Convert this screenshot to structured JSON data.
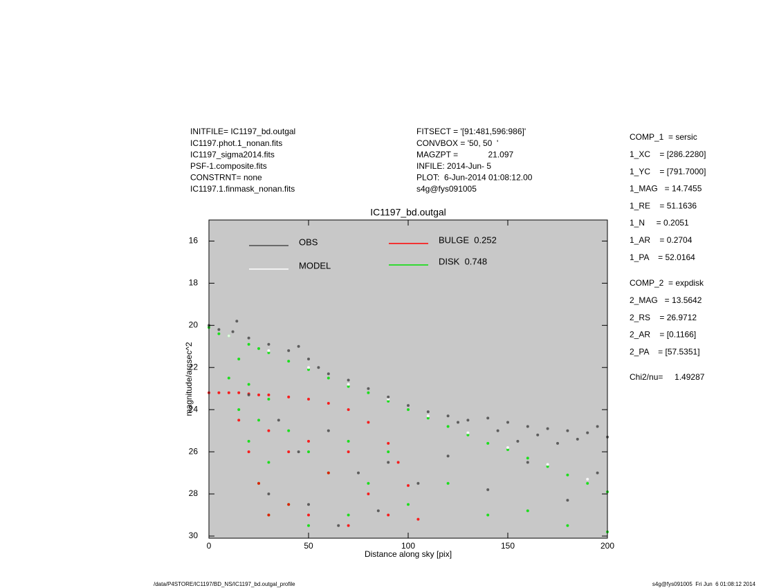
{
  "chart_data": {
    "type": "scatter",
    "title": "IC1197_bd.outgal",
    "x_label": "Distance along sky [pix]",
    "y_label": "magnitude/arcsec^2",
    "header_left": [
      "INITFILE= IC1197_bd.outgal",
      "IC1197.phot.1_nonan.fits",
      "IC1197_sigma2014.fits",
      "PSF-1.composite.fits",
      "CONSTRNT= none",
      "IC1197.1.finmask_nonan.fits"
    ],
    "header_middle": [
      "FITSECT = '[91:481,596:986]'",
      "CONVBOX = '50, 50  '",
      "MAGZPT =             21.097",
      "INFILE: 2014-Jun- 5",
      "PLOT:  6-Jun-2014 01:08:12.00",
      "s4g@fys091005"
    ],
    "parameters": [
      [
        "COMP_1  = sersic",
        "1_XC    = [286.2280]",
        "1_YC    = [791.7000]",
        "1_MAG   = 14.7455",
        "1_RE    = 51.1636",
        "1_N     = 0.2051",
        "1_AR    = 0.2704",
        "1_PA    = 52.0164"
      ],
      [
        "COMP_2  = expdisk",
        "2_MAG   = 13.5642",
        "2_RS    = 26.9712",
        "2_AR    = [0.1166]",
        "2_PA    = [57.5351]"
      ],
      [
        "Chi2/nu=     1.49287"
      ]
    ],
    "footer_left": "/data/P4STORE/IC1197/BD_NS/IC1197_bd.outgal_profile",
    "footer_right": "s4g@fys091005  Fri Jun  6 01:08:12 2014",
    "xlim": [
      0,
      200
    ],
    "xticks": [
      0,
      50,
      100,
      150,
      200
    ],
    "ylim": [
      15,
      30.1
    ],
    "y_inverted": true,
    "yticks": [
      16,
      18,
      20,
      22,
      24,
      26,
      28,
      30
    ],
    "background": "#c8c8c8",
    "series": [
      {
        "name": "OBS",
        "color": "#4a4a4a",
        "x": [
          0,
          5,
          12,
          14,
          20,
          30,
          40,
          45,
          50,
          55,
          60,
          70,
          80,
          90,
          100,
          110,
          120,
          125,
          130,
          140,
          145,
          150,
          155,
          160,
          165,
          170,
          175,
          180,
          185,
          190,
          195,
          200,
          20,
          35,
          45,
          60,
          75,
          90,
          105,
          120,
          140,
          160,
          180,
          195,
          30,
          50,
          65,
          85
        ],
        "values": [
          20,
          20.2,
          20.3,
          19.8,
          20.6,
          20.9,
          21.2,
          21.0,
          21.6,
          22.0,
          22.3,
          22.6,
          23.0,
          23.4,
          23.8,
          24.1,
          24.3,
          24.6,
          24.5,
          24.4,
          25.0,
          24.6,
          25.5,
          24.8,
          25.2,
          24.9,
          25.6,
          25.0,
          25.4,
          25.1,
          24.8,
          25.3,
          23.3,
          24.5,
          26,
          25,
          27,
          26.5,
          27.5,
          26.2,
          27.8,
          26.5,
          28.3,
          27,
          28,
          28.5,
          29.5,
          28.8
        ]
      },
      {
        "name": "MODEL",
        "color": "#ffffff",
        "x": [
          10,
          30,
          50,
          70,
          90,
          110,
          130,
          150,
          170,
          190
        ],
        "values": [
          20.5,
          21.2,
          22.0,
          22.8,
          23.5,
          24.3,
          25.1,
          25.8,
          26.6,
          27.3
        ]
      },
      {
        "name": "BULGE  0.252",
        "color": "#ff0000",
        "x": [
          0,
          5,
          10,
          15,
          15,
          20,
          20,
          25,
          25,
          30,
          30,
          30,
          40,
          40,
          40,
          50,
          50,
          50,
          60,
          60,
          70,
          70,
          70,
          80,
          80,
          90,
          90,
          95,
          100,
          105
        ],
        "values": [
          23.2,
          23.2,
          23.2,
          23.2,
          24.5,
          23.25,
          26,
          23.3,
          27.5,
          23.3,
          25,
          29,
          23.4,
          26,
          28.5,
          23.5,
          25.5,
          29,
          23.7,
          27,
          24.0,
          26,
          29.5,
          24.6,
          28,
          25.6,
          29,
          26.5,
          27.6,
          29.2
        ]
      },
      {
        "name": "DISK  0.748",
        "color": "#00e000",
        "x": [
          0,
          5,
          10,
          10,
          15,
          15,
          20,
          20,
          20,
          25,
          25,
          25,
          30,
          30,
          30,
          30,
          40,
          40,
          40,
          50,
          50,
          50,
          60,
          60,
          70,
          70,
          70,
          80,
          80,
          90,
          90,
          100,
          100,
          110,
          120,
          120,
          130,
          140,
          140,
          150,
          160,
          160,
          170,
          180,
          180,
          190,
          200,
          200
        ],
        "values": [
          20.1,
          20.4,
          20.5,
          22.5,
          21.6,
          24.0,
          20.9,
          22.8,
          25.5,
          21.1,
          24.5,
          27.5,
          21.3,
          23.5,
          26.5,
          29.0,
          21.7,
          25.0,
          28.5,
          22.1,
          26.0,
          29.5,
          22.5,
          27.0,
          22.9,
          25.5,
          29.0,
          23.2,
          27.5,
          23.6,
          26.0,
          24.0,
          28.5,
          24.4,
          24.8,
          27.5,
          25.2,
          25.6,
          29.0,
          25.9,
          26.3,
          28.8,
          26.7,
          27.1,
          29.5,
          27.5,
          27.9,
          29.8
        ]
      }
    ]
  }
}
